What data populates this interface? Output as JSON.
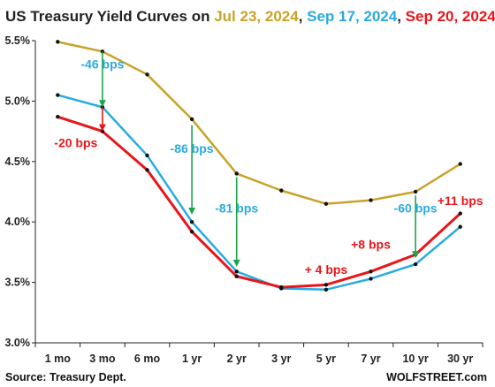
{
  "chart_data": {
    "type": "line",
    "title": {
      "prefix": "US Treasury Yield Curves on ",
      "parts": [
        {
          "text": "Jul 23, 2024",
          "color": "#c9a227"
        },
        {
          "text": ", ",
          "color": "#222222"
        },
        {
          "text": "Sep 17, 2024",
          "color": "#29abe2"
        },
        {
          "text": ", ",
          "color": "#222222"
        },
        {
          "text": "Sep 20, 2024",
          "color": "#e8161b"
        }
      ]
    },
    "categories": [
      "1 mo",
      "3 mo",
      "6 mo",
      "1 yr",
      "2 yr",
      "3 yr",
      "5 yr",
      "7 yr",
      "10 yr",
      "30 yr"
    ],
    "series": [
      {
        "name": "Jul 23, 2024",
        "color": "#c9a227",
        "values": [
          5.49,
          5.41,
          5.22,
          4.85,
          4.4,
          4.26,
          4.15,
          4.18,
          4.25,
          4.48
        ]
      },
      {
        "name": "Sep 17, 2024",
        "color": "#29abe2",
        "values": [
          5.05,
          4.95,
          4.55,
          4.0,
          3.59,
          3.45,
          3.44,
          3.53,
          3.65,
          3.96
        ]
      },
      {
        "name": "Sep 20, 2024",
        "color": "#e8161b",
        "values": [
          4.87,
          4.75,
          4.43,
          3.92,
          3.55,
          3.46,
          3.48,
          3.59,
          3.73,
          4.07
        ]
      }
    ],
    "ylim": [
      3.0,
      5.5
    ],
    "yticks": [
      "3.0%",
      "3.5%",
      "4.0%",
      "4.5%",
      "5.0%",
      "5.5%"
    ],
    "ytick_values": [
      3.0,
      3.5,
      4.0,
      4.5,
      5.0,
      5.5
    ],
    "grid": false,
    "change_arrows": [
      {
        "category": "3 mo",
        "from": 5.41,
        "to": 4.95,
        "color": "#1aa64a"
      },
      {
        "category": "3 mo",
        "from": 4.95,
        "to": 4.75,
        "color": "#e8161b"
      },
      {
        "category": "1 yr",
        "from": 4.8,
        "to": 4.06,
        "color": "#1aa64a"
      },
      {
        "category": "2 yr",
        "from": 4.37,
        "to": 3.63,
        "color": "#1aa64a"
      },
      {
        "category": "10 yr",
        "from": 4.22,
        "to": 3.7,
        "color": "#1aa64a"
      }
    ],
    "annotations": [
      {
        "text": "-46 bps",
        "color": "#29abe2",
        "at_category": "3 mo",
        "at_value": 5.27,
        "anchor": "middle"
      },
      {
        "text": "-20 bps",
        "color": "#e8161b",
        "at_category": "1 mo",
        "at_value": 4.62,
        "anchor": "start"
      },
      {
        "text": "-86 bps",
        "color": "#29abe2",
        "at_category": "1 yr",
        "at_value": 4.57,
        "anchor": "middle"
      },
      {
        "text": "-81 bps",
        "color": "#29abe2",
        "at_category": "2 yr",
        "at_value": 4.08,
        "anchor": "middle"
      },
      {
        "text": "-60 bps",
        "color": "#29abe2",
        "at_category": "10 yr",
        "at_value": 4.08,
        "anchor": "middle"
      },
      {
        "text": "+ 4 bps",
        "color": "#e8161b",
        "at_category": "5 yr",
        "at_value": 3.57,
        "anchor": "middle"
      },
      {
        "text": "+8 bps",
        "color": "#e8161b",
        "at_category": "7 yr",
        "at_value": 3.78,
        "anchor": "middle"
      },
      {
        "text": "+11 bps",
        "color": "#e8161b",
        "at_category": "30 yr",
        "at_value": 4.14,
        "anchor": "middle"
      }
    ],
    "source": "Source: Treasury Dept.",
    "credit": "WOLFSTREET.com"
  }
}
